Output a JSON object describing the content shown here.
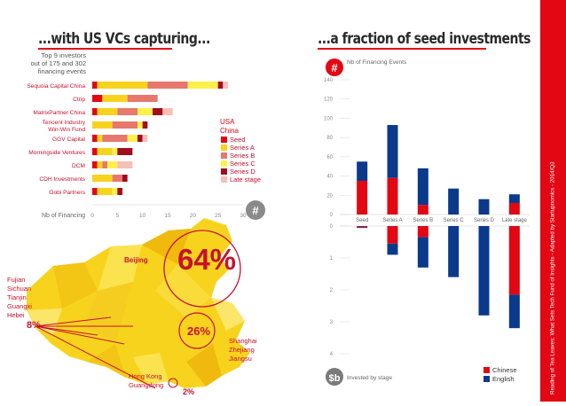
{
  "titles": {
    "left": "...with US VCs capturing...",
    "right": "...a fraction of seed investments"
  },
  "side_label": "Reading of Tea Leaves: What Sets Tech Fund of Insights - Adapted by Startupnomics - 2014/Q3",
  "colors": {
    "seed": "#e30613",
    "series_a": "#f7d31e",
    "series_b": "#e8776c",
    "series_c": "#fff14a",
    "series_d": "#a30b1f",
    "late": "#f5c0b6",
    "chinese": "#e30613",
    "english": "#0b3a8c",
    "accent": "#e30613",
    "map_yellow": "#f7d31e"
  },
  "left_chart": {
    "header": "Top 9 investors\nout of 175 and 302\nfinancing events",
    "axis_label": "Nb of Financing",
    "badge": "#",
    "region_label": "USA\nChina"
  },
  "chart_data": [
    {
      "type": "bar",
      "orientation": "horizontal",
      "stacked": true,
      "categories": [
        "Sequoia Capital China",
        "Ctrip",
        "MatrixPartner China",
        "Tencent Industry Win-Win Fund",
        "GGV Capital",
        "Morningside Ventures",
        "DCM",
        "CDH Investments",
        "Gobi Partners"
      ],
      "series": [
        {
          "name": "Seed",
          "color": "#e30613",
          "values": [
            1,
            2,
            1,
            0,
            1,
            1,
            1,
            0,
            1
          ]
        },
        {
          "name": "Series A",
          "color": "#f7d31e",
          "values": [
            10,
            5,
            4,
            4,
            1,
            3,
            1,
            4,
            3
          ]
        },
        {
          "name": "Series B",
          "color": "#e8776c",
          "values": [
            8,
            6,
            4,
            5,
            5,
            0,
            1,
            2,
            0
          ]
        },
        {
          "name": "Series C",
          "color": "#fff14a",
          "values": [
            6,
            0,
            3,
            1,
            2,
            1,
            2,
            0,
            1
          ]
        },
        {
          "name": "Series D",
          "color": "#a30b1f",
          "values": [
            1,
            0,
            2,
            1,
            1,
            3,
            0,
            1,
            1
          ]
        },
        {
          "name": "Late stage",
          "color": "#f5c0b6",
          "values": [
            1,
            0,
            2,
            0,
            1,
            0,
            3,
            0,
            0
          ]
        }
      ],
      "xlabel": "Nb of Financing",
      "xticks": [
        0,
        5,
        10,
        15,
        20,
        25,
        30
      ],
      "xlim": [
        0,
        30
      ],
      "legend": [
        "Seed",
        "Series A",
        "Series B",
        "Series C",
        "Series D",
        "Late stage"
      ]
    },
    {
      "type": "bar",
      "stacked": true,
      "categories": [
        "Seed",
        "Series A",
        "Series B",
        "Series C",
        "Series D",
        "Late stage"
      ],
      "ylabel": "Nb of Financing Events",
      "yticks": [
        0,
        20,
        40,
        60,
        80,
        100,
        120,
        140
      ],
      "ylim": [
        0,
        140
      ],
      "series": [
        {
          "name": "Chinese",
          "color": "#e30613",
          "values": [
            35,
            38,
            10,
            0,
            0,
            12
          ]
        },
        {
          "name": "English",
          "color": "#0b3a8c",
          "values": [
            20,
            55,
            38,
            27,
            16,
            9
          ]
        }
      ]
    },
    {
      "type": "bar",
      "stacked": true,
      "direction": "downward",
      "categories": [
        "Seed",
        "Series A",
        "Series B",
        "Series C",
        "Series D",
        "Late stage"
      ],
      "ylabel": "Invested by stage",
      "yticks": [
        0,
        1,
        2,
        3,
        4
      ],
      "ylim": [
        0,
        4.5
      ],
      "series": [
        {
          "name": "Chinese",
          "color": "#e30613",
          "values": [
            0.03,
            0.55,
            0.35,
            0,
            0,
            2.15
          ]
        },
        {
          "name": "English",
          "color": "#0b3a8c",
          "values": [
            0.03,
            0.35,
            0.95,
            1.6,
            2.8,
            1.05
          ]
        }
      ],
      "legend": [
        "Chinese",
        "English"
      ]
    }
  ],
  "right_chart": {
    "badge_top": "#",
    "badge_bottom": "$b",
    "top_label": "Nb of Financing Events",
    "bottom_label": "Invested by stage"
  },
  "map": {
    "big_percent": "64%",
    "mid_percent": "26%",
    "small_percent": "2%",
    "side_percent": "8%",
    "beijing": "Beijing",
    "west_regions": "Fujian\nSichuan\nTianjin\nGuangxi\nHebei",
    "east_regions": "Shanghai\nZhejiang\nJiangsu",
    "south_regions": "Hong Kong\nGuangdong"
  }
}
